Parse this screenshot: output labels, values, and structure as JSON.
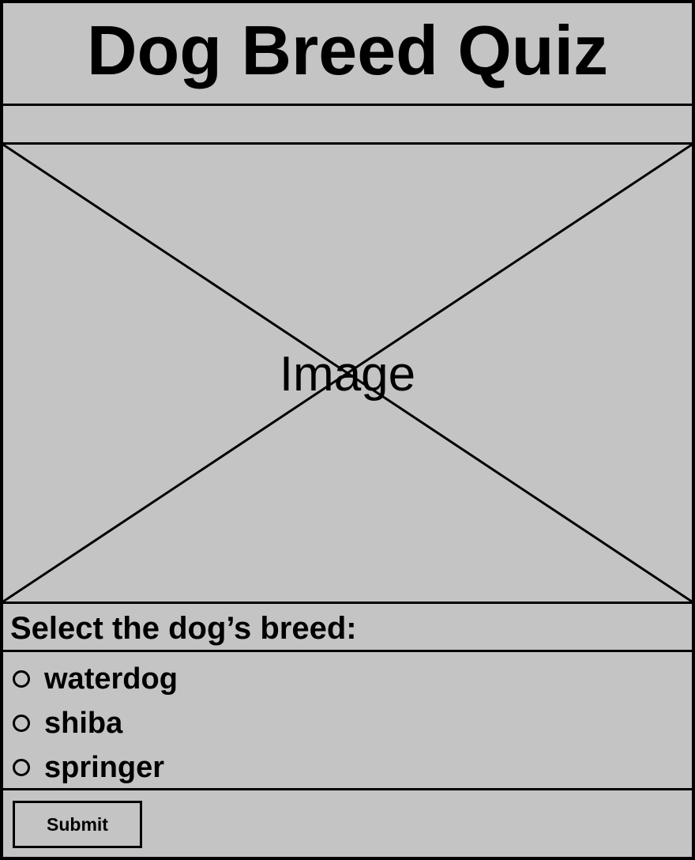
{
  "header": {
    "title": "Dog Breed Quiz"
  },
  "image_placeholder": {
    "label": "Image"
  },
  "question": {
    "prompt": "Select the dog’s breed:"
  },
  "options": [
    {
      "label": "waterdog",
      "selected": false
    },
    {
      "label": "shiba",
      "selected": false
    },
    {
      "label": "springer",
      "selected": false
    }
  ],
  "actions": {
    "submit_label": "Submit"
  }
}
